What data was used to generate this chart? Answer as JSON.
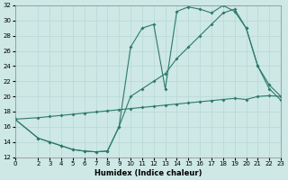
{
  "bg_color": "#cde8e5",
  "line_color": "#2d7a6a",
  "grid_color": "#b8d8d5",
  "xlabel": "Humidex (Indice chaleur)",
  "xlim": [
    0,
    23
  ],
  "ylim": [
    12,
    32
  ],
  "xticks": [
    0,
    2,
    3,
    4,
    5,
    6,
    7,
    8,
    9,
    10,
    11,
    12,
    13,
    14,
    15,
    16,
    17,
    18,
    19,
    20,
    21,
    22,
    23
  ],
  "yticks": [
    12,
    14,
    16,
    18,
    20,
    22,
    24,
    26,
    28,
    30,
    32
  ],
  "curve1_x": [
    0,
    2,
    3,
    4,
    5,
    6,
    7,
    8,
    9,
    10,
    11,
    12,
    13,
    14,
    15,
    16,
    17,
    18,
    19,
    20,
    21,
    22,
    23
  ],
  "curve1_y": [
    17.0,
    14.5,
    14.0,
    13.5,
    13.0,
    12.8,
    12.7,
    12.8,
    16.0,
    26.5,
    29.0,
    29.5,
    21.0,
    31.2,
    31.8,
    31.5,
    31.0,
    32.0,
    31.2,
    29.0,
    24.0,
    21.0,
    19.5
  ],
  "curve2_x": [
    0,
    2,
    3,
    4,
    5,
    6,
    7,
    8,
    9,
    10,
    11,
    12,
    13,
    14,
    15,
    16,
    17,
    18,
    19,
    20,
    21,
    22,
    23
  ],
  "curve2_y": [
    17.0,
    14.5,
    14.0,
    13.5,
    13.0,
    12.8,
    12.7,
    12.8,
    16.0,
    20.0,
    21.0,
    22.0,
    23.0,
    25.0,
    26.5,
    28.0,
    29.5,
    31.0,
    31.5,
    29.0,
    24.0,
    21.5,
    20.0
  ],
  "curve3_x": [
    0,
    2,
    3,
    4,
    5,
    6,
    7,
    8,
    9,
    10,
    11,
    12,
    13,
    14,
    15,
    16,
    17,
    18,
    19,
    20,
    21,
    22,
    23
  ],
  "curve3_y": [
    17.0,
    17.2,
    17.35,
    17.5,
    17.65,
    17.8,
    17.95,
    18.1,
    18.25,
    18.4,
    18.55,
    18.7,
    18.85,
    19.0,
    19.15,
    19.3,
    19.45,
    19.6,
    19.75,
    19.6,
    20.0,
    20.1,
    20.0
  ]
}
